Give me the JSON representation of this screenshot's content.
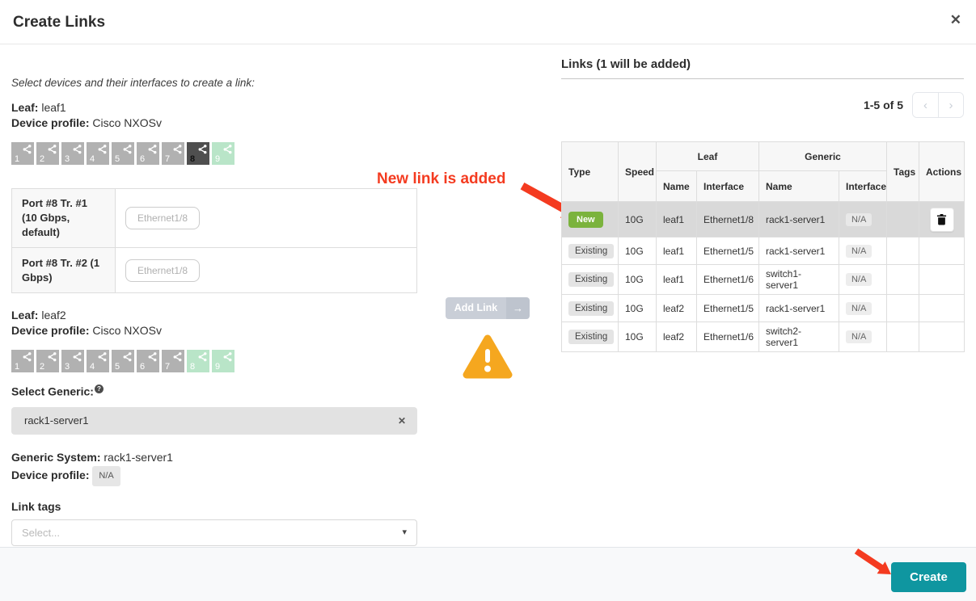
{
  "colors": {
    "accent_teal": "#0f96a0",
    "new_badge_green": "#7bb33d",
    "annotation_red": "#f43b20",
    "warning_orange": "#f5a71f",
    "port_default_gray": "#b1b1b1",
    "port_selected_dark": "#4f4f4f",
    "port_available_green": "#b9e5c8"
  },
  "header": {
    "title": "Create Links"
  },
  "icons": {
    "close": "✕",
    "clear": "✕",
    "prev": "‹",
    "next": "›",
    "caret": "▾",
    "add_link_arrow": "→",
    "help": "?",
    "port_icon": "share-nodes-icon",
    "trash_icon": "trash-icon",
    "warning_icon": "warning-triangle-icon"
  },
  "left": {
    "intro": "Select devices and their interfaces to create a link:",
    "leaf1": {
      "label": "Leaf:",
      "value": "leaf1",
      "profile_label": "Device profile:",
      "profile_value": "Cisco NXOSv"
    },
    "leaf1_ports": [
      {
        "n": "1",
        "state": "default"
      },
      {
        "n": "2",
        "state": "default"
      },
      {
        "n": "3",
        "state": "default"
      },
      {
        "n": "4",
        "state": "default"
      },
      {
        "n": "5",
        "state": "default"
      },
      {
        "n": "6",
        "state": "default"
      },
      {
        "n": "7",
        "state": "default"
      },
      {
        "n": "8",
        "state": "selected"
      },
      {
        "n": "9",
        "state": "available"
      }
    ],
    "transforms": [
      {
        "label": "Port #8 Tr. #1 (10 Gbps, default)",
        "value": "Ethernet1/8"
      },
      {
        "label": "Port #8 Tr. #2 (1 Gbps)",
        "value": "Ethernet1/8"
      }
    ],
    "leaf2": {
      "label": "Leaf:",
      "value": "leaf2",
      "profile_label": "Device profile:",
      "profile_value": "Cisco NXOSv"
    },
    "leaf2_ports": [
      {
        "n": "1",
        "state": "default"
      },
      {
        "n": "2",
        "state": "default"
      },
      {
        "n": "3",
        "state": "default"
      },
      {
        "n": "4",
        "state": "default"
      },
      {
        "n": "5",
        "state": "default"
      },
      {
        "n": "6",
        "state": "default"
      },
      {
        "n": "7",
        "state": "default"
      },
      {
        "n": "8",
        "state": "available"
      },
      {
        "n": "9",
        "state": "available"
      }
    ],
    "select_generic_label": "Select Generic:",
    "generic_input_value": "rack1-server1",
    "generic_system_label": "Generic System:",
    "generic_system_value": "rack1-server1",
    "generic_profile_label": "Device profile:",
    "generic_profile_value": "N/A",
    "link_tags_label": "Link tags",
    "link_tags_placeholder": "Select..."
  },
  "middle": {
    "annotation": "New link is added",
    "add_link_label": "Add Link"
  },
  "right": {
    "title": "Links (1 will be added)",
    "pagination": {
      "range": "1-5 of 5"
    },
    "table": {
      "headers": {
        "type": "Type",
        "speed": "Speed",
        "leaf_group": "Leaf",
        "generic_group": "Generic",
        "name": "Name",
        "interface": "Interface",
        "tags": "Tags",
        "actions": "Actions"
      },
      "rows": [
        {
          "type": "New",
          "speed": "10G",
          "leaf_name": "leaf1",
          "leaf_interface": "Ethernet1/8",
          "generic_name": "rack1-server1",
          "generic_interface": "N/A",
          "tags": "",
          "highlight": true,
          "deletable": true
        },
        {
          "type": "Existing",
          "speed": "10G",
          "leaf_name": "leaf1",
          "leaf_interface": "Ethernet1/5",
          "generic_name": "rack1-server1",
          "generic_interface": "N/A",
          "tags": "",
          "highlight": false,
          "deletable": false
        },
        {
          "type": "Existing",
          "speed": "10G",
          "leaf_name": "leaf1",
          "leaf_interface": "Ethernet1/6",
          "generic_name": "switch1-server1",
          "generic_interface": "N/A",
          "tags": "",
          "highlight": false,
          "deletable": false
        },
        {
          "type": "Existing",
          "speed": "10G",
          "leaf_name": "leaf2",
          "leaf_interface": "Ethernet1/5",
          "generic_name": "rack1-server1",
          "generic_interface": "N/A",
          "tags": "",
          "highlight": false,
          "deletable": false
        },
        {
          "type": "Existing",
          "speed": "10G",
          "leaf_name": "leaf2",
          "leaf_interface": "Ethernet1/6",
          "generic_name": "switch2-server1",
          "generic_interface": "N/A",
          "tags": "",
          "highlight": false,
          "deletable": false
        }
      ]
    }
  },
  "footer": {
    "create_label": "Create"
  }
}
